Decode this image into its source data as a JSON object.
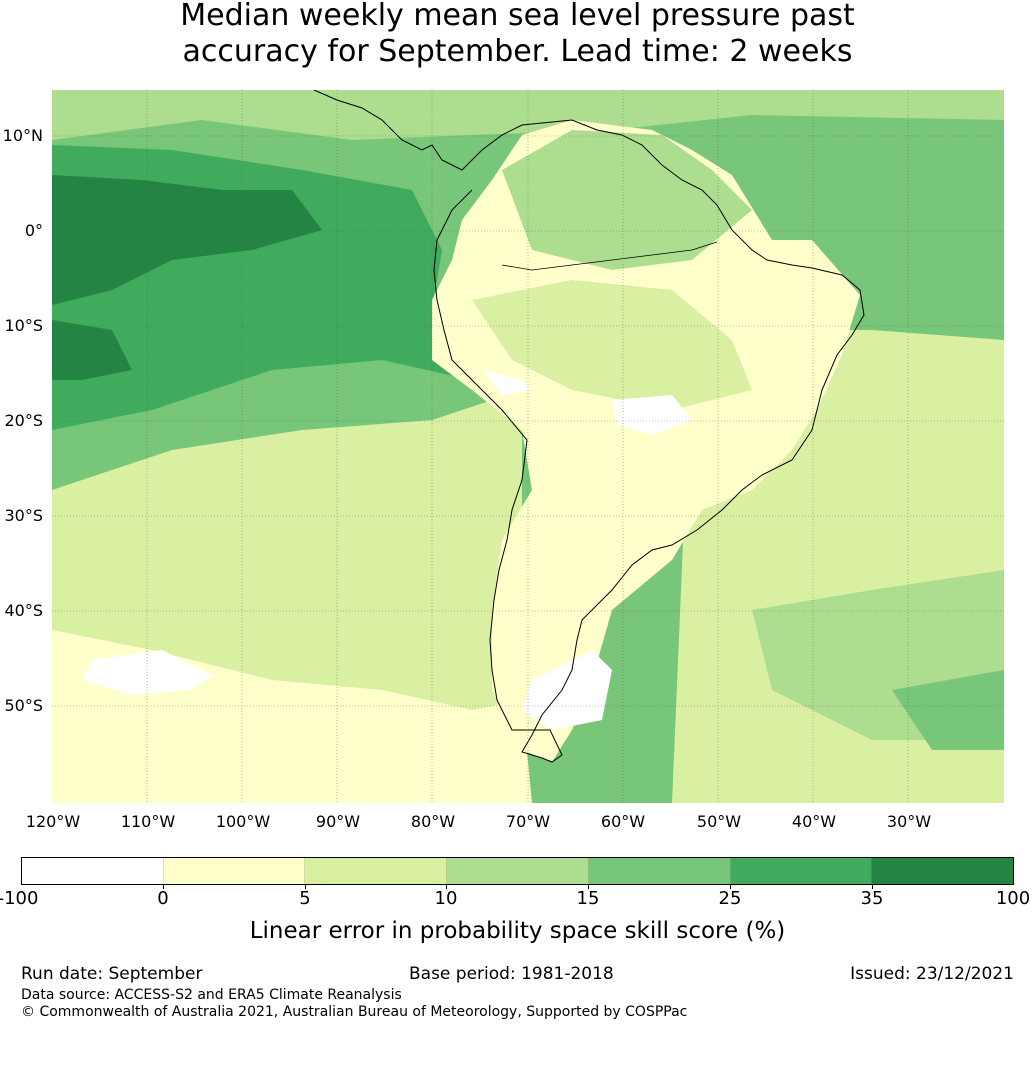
{
  "title": {
    "line1": "Median weekly mean sea level pressure past",
    "line2": "accuracy for September. Lead time: 2 weeks"
  },
  "map": {
    "lat_labels": [
      "10°N",
      "0°",
      "10°S",
      "20°S",
      "30°S",
      "40°S",
      "50°S"
    ],
    "lon_labels": [
      "120°W",
      "110°W",
      "100°W",
      "90°W",
      "80°W",
      "70°W",
      "60°W",
      "50°W",
      "40°W",
      "30°W"
    ],
    "ocean_background_color": "#aede92",
    "coastline_color": "#000000"
  },
  "colorbar": {
    "ticks": [
      "-100",
      "0",
      "5",
      "10",
      "15",
      "25",
      "35",
      "100"
    ],
    "colors": [
      "#ffffff",
      "#ffffcc",
      "#d9f0a3",
      "#addd8e",
      "#78c679",
      "#41ab5d",
      "#238443"
    ],
    "label": "Linear error in probability space skill score (%)"
  },
  "footer": {
    "run_date": "Run date: September",
    "base_period": "Base period: 1981-2018",
    "issued": "Issued: 23/12/2021",
    "data_source": "Data source: ACCESS-S2 and ERA5 Climate Reanalysis",
    "copyright": "© Commonwealth of Australia 2021, Australian Bureau of Meteorology, Supported by COSPPac"
  }
}
